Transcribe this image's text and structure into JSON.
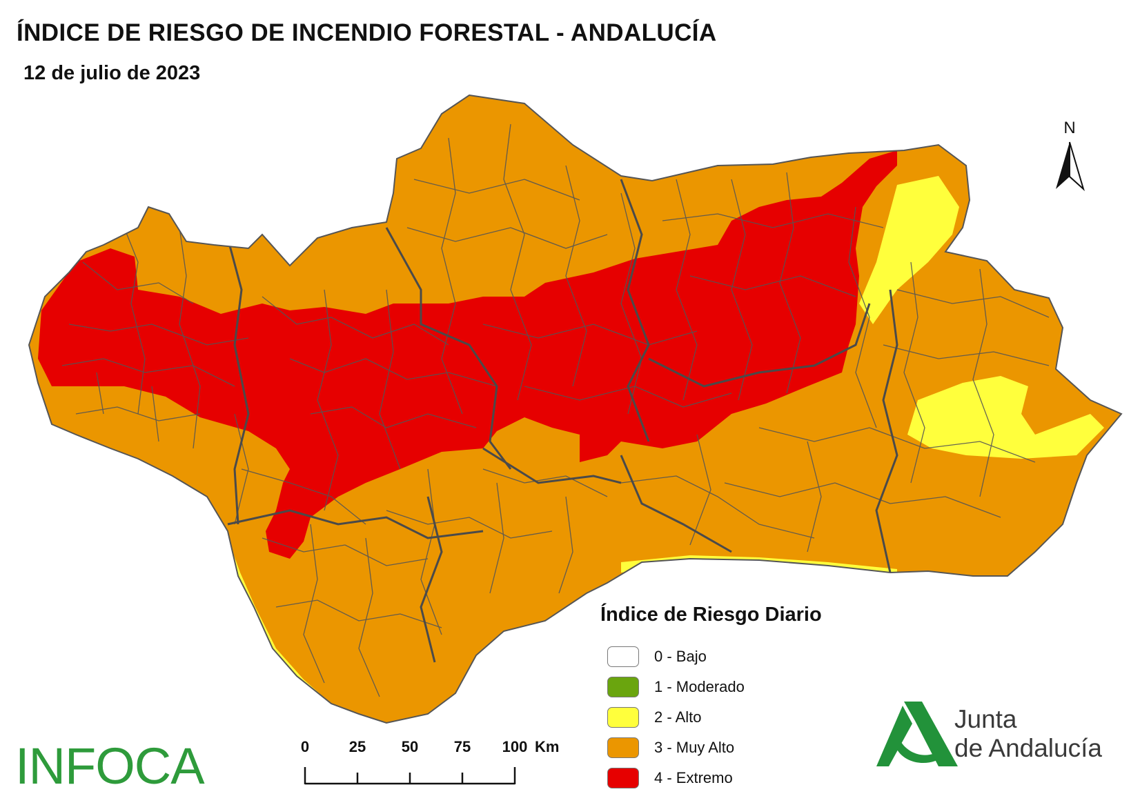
{
  "header": {
    "title": "ÍNDICE DE RIESGO DE INCENDIO FORESTAL - ANDALUCÍA",
    "date": "12 de julio de 2023"
  },
  "north_arrow": {
    "label": "N"
  },
  "legend": {
    "title": "Índice de Riesgo Diario",
    "items": [
      {
        "label": "0 - Bajo",
        "color": "#ffffff"
      },
      {
        "label": "1 - Moderado",
        "color": "#6aa50e"
      },
      {
        "label": "2 - Alto",
        "color": "#ffff3c"
      },
      {
        "label": "3 - Muy Alto",
        "color": "#eb9600"
      },
      {
        "label": "4 - Extremo",
        "color": "#e60000"
      }
    ]
  },
  "scale_bar": {
    "ticks": [
      "0",
      "25",
      "50",
      "75",
      "100"
    ],
    "unit": "Km"
  },
  "colors": {
    "muy_alto": "#eb9600",
    "extremo": "#e60000",
    "alto": "#ffff3c",
    "borders": "#555555"
  },
  "logos": {
    "infoca": "INFOCA",
    "junta_line1": "Junta",
    "junta_line2": "de Andalucía",
    "junta_color": "#22923a"
  }
}
